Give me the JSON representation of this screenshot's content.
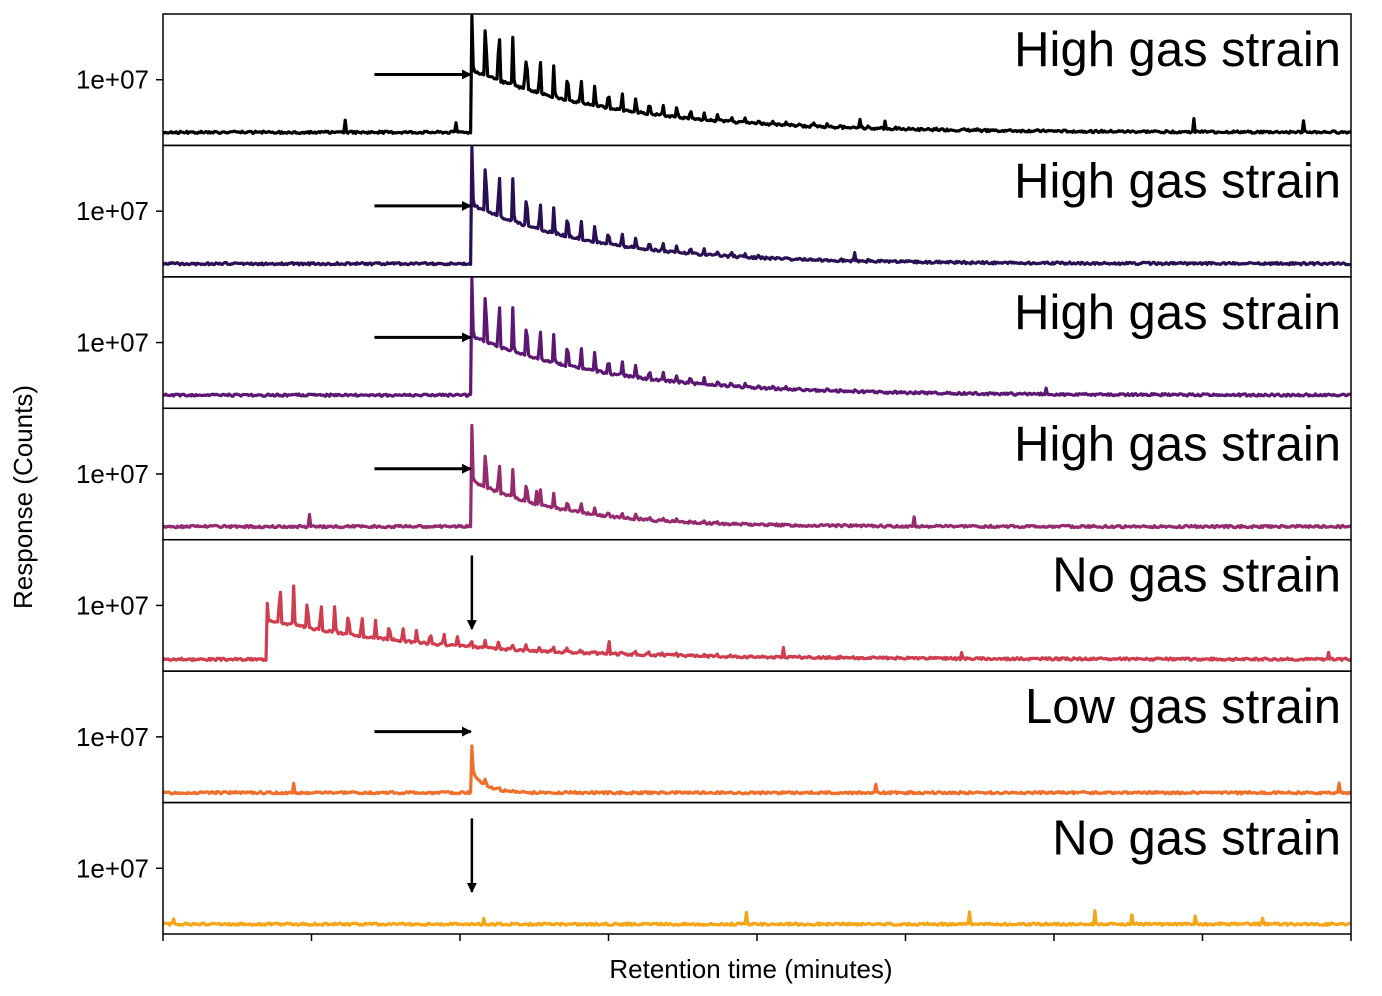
{
  "chart_data": {
    "type": "line",
    "xlabel": "Retention time (minutes)",
    "ylabel": "Response (Counts)",
    "x_tick_count": 9,
    "x_tick_labels": [],
    "y_tick_label": "1e+07",
    "ylim": [
      0,
      20000000.0
    ],
    "grid": false,
    "legend": "none",
    "panels": [
      {
        "label": "High gas strain",
        "color": "#000000",
        "baseline": 2000000.0,
        "peak_position": 0.26,
        "peak_height": 21000000.0,
        "decay": 0.35,
        "marker": "arrow-right"
      },
      {
        "label": "High gas strain",
        "color": "#2a0f54",
        "baseline": 2000000.0,
        "peak_position": 0.26,
        "peak_height": 20000000.0,
        "decay": 0.3,
        "marker": "arrow-right"
      },
      {
        "label": "High gas strain",
        "color": "#5c1673",
        "baseline": 2000000.0,
        "peak_position": 0.26,
        "peak_height": 20000000.0,
        "decay": 0.33,
        "marker": "arrow-right"
      },
      {
        "label": "High gas strain",
        "color": "#962a6e",
        "baseline": 2000000.0,
        "peak_position": 0.26,
        "peak_height": 16000000.0,
        "decay": 0.22,
        "marker": "arrow-right"
      },
      {
        "label": "No gas strain",
        "color": "#cf3d4e",
        "baseline": 1800000.0,
        "peak_position": 0.087,
        "peak_height": 14000000.0,
        "decay": 0.42,
        "marker": "arrow-down"
      },
      {
        "label": "Low gas strain",
        "color": "#ef6f2b",
        "baseline": 1500000.0,
        "peak_position": 0.26,
        "peak_height": 8000000.0,
        "decay": 0.05,
        "marker": "arrow-right"
      },
      {
        "label": "No gas strain",
        "color": "#f6a516",
        "baseline": 1500000.0,
        "peak_position": null,
        "peak_height": null,
        "decay": null,
        "marker": "arrow-down"
      }
    ]
  }
}
